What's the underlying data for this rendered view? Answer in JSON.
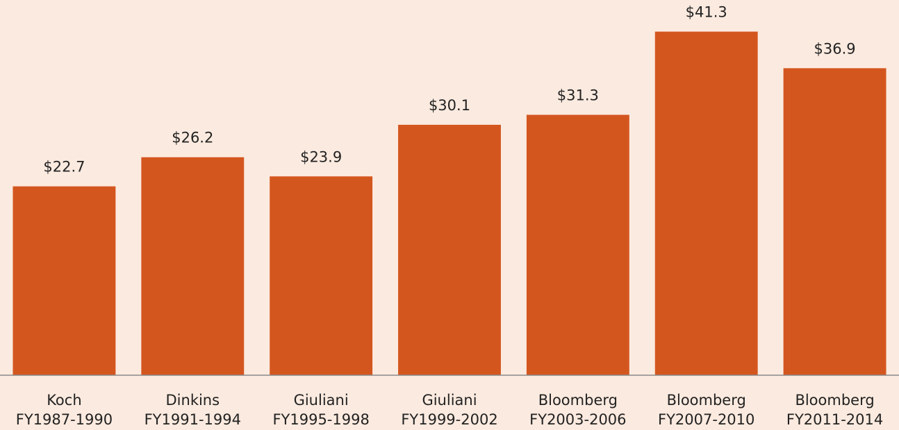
{
  "chart_data": {
    "type": "bar",
    "categories": [
      [
        "Koch",
        "FY1987-1990"
      ],
      [
        "Dinkins",
        "FY1991-1994"
      ],
      [
        "Giuliani",
        "FY1995-1998"
      ],
      [
        "Giuliani",
        "FY1999-2002"
      ],
      [
        "Bloomberg",
        "FY2003-2006"
      ],
      [
        "Bloomberg",
        "FY2007-2010"
      ],
      [
        "Bloomberg",
        "FY2011-2014"
      ]
    ],
    "values": [
      22.7,
      26.2,
      23.9,
      30.1,
      31.3,
      41.3,
      36.9
    ],
    "value_labels": [
      "$22.7",
      "$26.2",
      "$23.9",
      "$30.1",
      "$31.3",
      "$41.3",
      "$36.9"
    ],
    "color": "#d4561f",
    "ylim": [
      0,
      45.1
    ]
  }
}
